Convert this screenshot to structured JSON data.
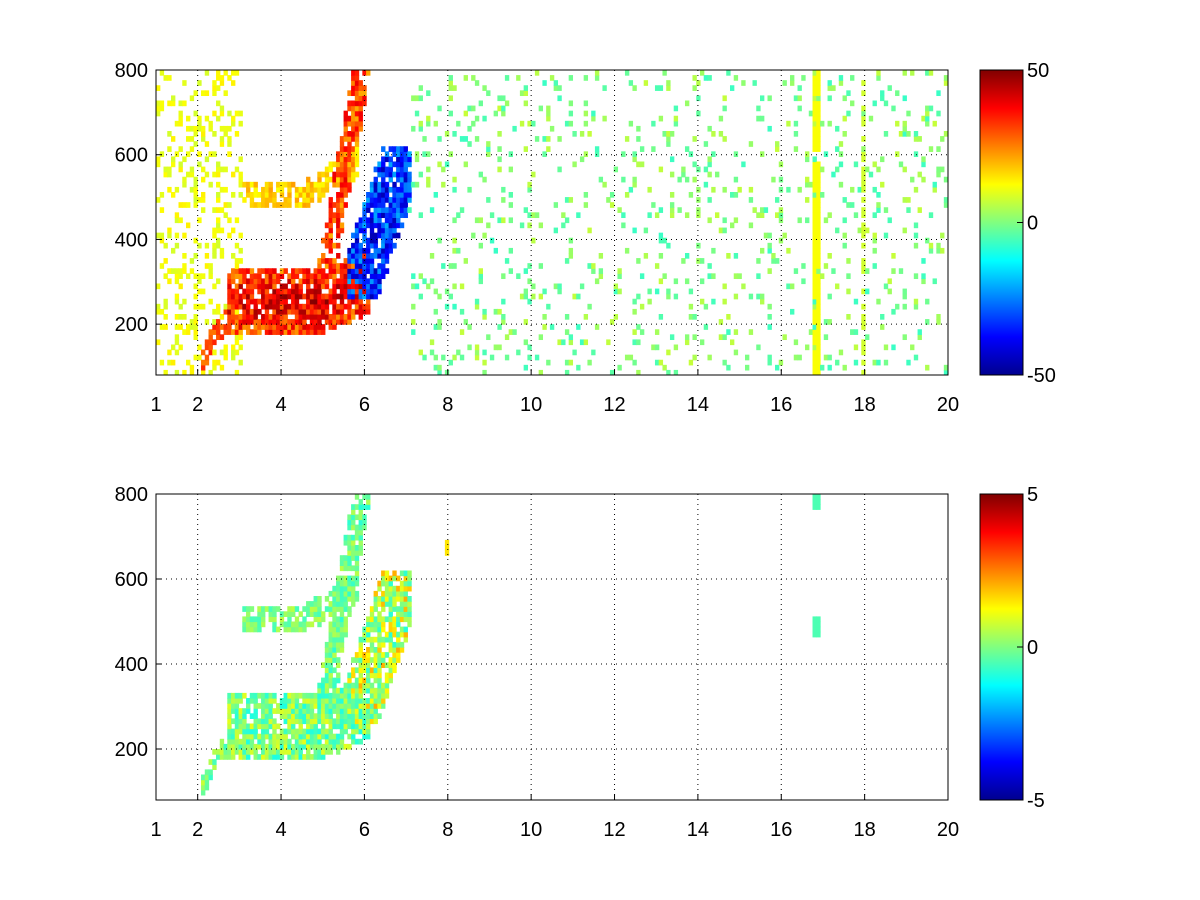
{
  "chart_data": [
    {
      "type": "heatmap",
      "title": "",
      "xlabel": "",
      "ylabel": "",
      "x_ticks": [
        "1",
        "2",
        "4",
        "6",
        "8",
        "10",
        "12",
        "14",
        "16",
        "18",
        "20"
      ],
      "x_tick_values": [
        1,
        2,
        4,
        6,
        8,
        10,
        12,
        14,
        16,
        18,
        20
      ],
      "y_ticks": [
        "200",
        "400",
        "600",
        "800"
      ],
      "y_tick_values": [
        200,
        400,
        600,
        800
      ],
      "xlim": [
        1,
        20
      ],
      "ylim": [
        80,
        800
      ],
      "grid": true,
      "colormap": "jet",
      "colorbar": {
        "ticks": [
          "50",
          "0",
          "-50"
        ],
        "tick_values": [
          50,
          0,
          -50
        ],
        "range": [
          -50,
          50
        ]
      },
      "features": [
        {
          "name": "lower band",
          "x_range": [
            2.8,
            7.0
          ],
          "y_range": [
            180,
            320
          ],
          "approx_value": 40
        },
        {
          "name": "upper band",
          "x_range": [
            3.0,
            5.8
          ],
          "y_range": [
            460,
            560
          ],
          "approx_value": 15
        },
        {
          "name": "diagonal ridge",
          "x_range": [
            5.0,
            5.9
          ],
          "y_range": [
            300,
            800
          ],
          "approx_value": 25
        },
        {
          "name": "negative lobe",
          "x_range": [
            5.5,
            7.0
          ],
          "y_range": [
            250,
            600
          ],
          "approx_value": -40
        },
        {
          "name": "vertical streak",
          "x": 16.8,
          "y_range": [
            80,
            800
          ],
          "approx_value": 12
        }
      ]
    },
    {
      "type": "heatmap",
      "title": "",
      "xlabel": "",
      "ylabel": "",
      "x_ticks": [
        "1",
        "2",
        "4",
        "6",
        "8",
        "10",
        "12",
        "14",
        "16",
        "18",
        "20"
      ],
      "x_tick_values": [
        1,
        2,
        4,
        6,
        8,
        10,
        12,
        14,
        16,
        18,
        20
      ],
      "y_ticks": [
        "200",
        "400",
        "600",
        "800"
      ],
      "y_tick_values": [
        200,
        400,
        600,
        800
      ],
      "xlim": [
        1,
        20
      ],
      "ylim": [
        80,
        800
      ],
      "grid": true,
      "colormap": "jet",
      "colorbar": {
        "ticks": [
          "5",
          "0",
          "-5"
        ],
        "tick_values": [
          5,
          0,
          -5
        ],
        "range": [
          -5,
          5
        ]
      },
      "features": [
        {
          "name": "lower band",
          "x_range": [
            2.8,
            6.0
          ],
          "y_range": [
            180,
            320
          ],
          "approx_value": 0
        },
        {
          "name": "upper band",
          "x_range": [
            3.0,
            5.8
          ],
          "y_range": [
            460,
            560
          ],
          "approx_value": 0
        },
        {
          "name": "diagonal ridge",
          "x_range": [
            5.0,
            5.9
          ],
          "y_range": [
            300,
            780
          ],
          "approx_value": -0.5
        },
        {
          "name": "right edge",
          "x_range": [
            6.5,
            7.0
          ],
          "y_range": [
            250,
            600
          ],
          "approx_value": 1.5
        }
      ]
    }
  ]
}
